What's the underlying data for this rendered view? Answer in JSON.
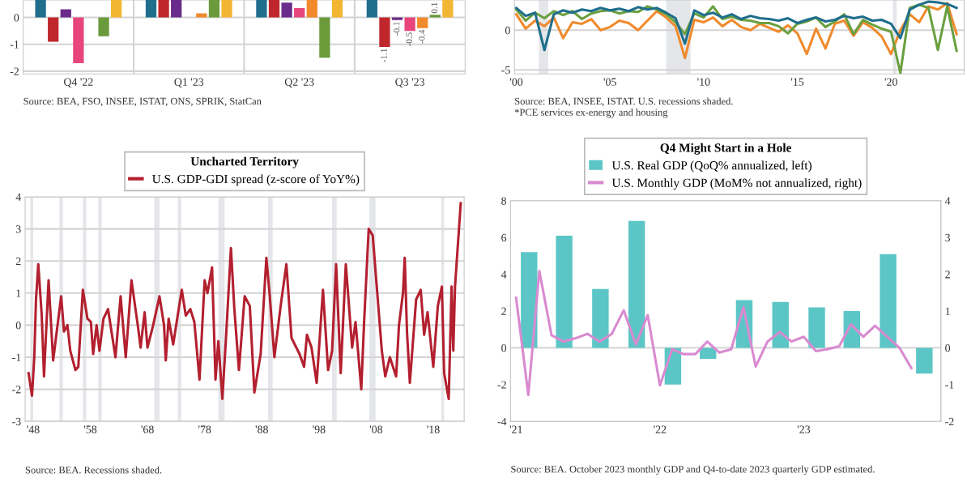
{
  "chart_data": [
    {
      "type": "bar",
      "categories": [
        "Q4 '22",
        "Q1 '23",
        "Q2 '23",
        "Q3 '23"
      ],
      "ylim": [
        -2.1,
        0.65
      ],
      "yticks": [
        0,
        -1,
        -2
      ],
      "grid": true,
      "series": [
        {
          "color": "#1f6e8c",
          "values": [
            0.65,
            0.65,
            0.65,
            0.65
          ]
        },
        {
          "color": "#c0272d",
          "values": [
            -0.9,
            0.65,
            0.65,
            -1.1
          ],
          "value_labels": [
            null,
            null,
            null,
            "-1.1"
          ]
        },
        {
          "color": "#6a2c8a",
          "values": [
            0.3,
            0.65,
            0.55,
            -0.1
          ],
          "value_labels": [
            null,
            null,
            null,
            "-0.1"
          ]
        },
        {
          "color": "#e8457c",
          "values": [
            -1.7,
            null,
            0.35,
            -0.5
          ],
          "value_labels": [
            null,
            null,
            null,
            "-0.5"
          ]
        },
        {
          "color": "#f08a2c",
          "values": [
            null,
            0.15,
            0.65,
            -0.4
          ],
          "value_labels": [
            null,
            null,
            null,
            "-0.4"
          ]
        },
        {
          "color": "#6a9a3a",
          "values": [
            -0.7,
            0.65,
            -1.5,
            0.1
          ],
          "value_labels": [
            null,
            null,
            null,
            "0.1"
          ]
        },
        {
          "color": "#f2b632",
          "values": [
            0.65,
            0.65,
            0.65,
            0.65
          ]
        }
      ],
      "annotations": [
        "Source: BEA, FSO, INSEE, ISTAT, ONS, SPRIK, StatCan"
      ]
    },
    {
      "type": "line",
      "xlim": [
        1999.9,
        2023.9
      ],
      "ylim": [
        -5.5,
        3.8
      ],
      "yticks": [
        0,
        -5
      ],
      "grid": "y",
      "xticks": [
        {
          "value": 2000,
          "label": "'00"
        },
        {
          "value": 2005,
          "label": "'05"
        },
        {
          "value": 2010,
          "label": "'10"
        },
        {
          "value": 2015,
          "label": "'15"
        },
        {
          "value": 2020,
          "label": "'20"
        }
      ],
      "x": [
        2000.0,
        2000.5,
        2001.0,
        2001.5,
        2002.0,
        2002.5,
        2003.0,
        2003.5,
        2004.0,
        2004.5,
        2005.0,
        2005.5,
        2006.0,
        2006.5,
        2007.0,
        2007.5,
        2008.0,
        2008.5,
        2009.0,
        2009.5,
        2010.0,
        2010.5,
        2011.0,
        2011.5,
        2012.0,
        2012.5,
        2013.0,
        2013.5,
        2014.0,
        2014.5,
        2015.0,
        2015.5,
        2016.0,
        2016.5,
        2017.0,
        2017.5,
        2018.0,
        2018.5,
        2019.0,
        2019.5,
        2020.0,
        2020.5,
        2021.0,
        2021.5,
        2022.0,
        2022.5,
        2023.0,
        2023.5
      ],
      "series": [
        {
          "color": "#f08a2c",
          "values": [
            2.0,
            0.2,
            1.2,
            0.5,
            1.6,
            -1.0,
            1.0,
            0.8,
            1.4,
            0.0,
            0.4,
            1.2,
            0.9,
            0.0,
            1.2,
            2.4,
            1.6,
            0.5,
            -3.5,
            1.3,
            1.0,
            1.6,
            0.5,
            1.3,
            0.4,
            0.0,
            0.8,
            0.3,
            -0.2,
            0.6,
            -0.4,
            -3.0,
            0.2,
            -2.3,
            0.8,
            1.2,
            -0.7,
            1.0,
            0.3,
            -0.8,
            -3.0,
            0.0,
            2.0,
            1.0,
            3.0,
            2.6,
            3.4,
            -0.5
          ]
        },
        {
          "color": "#6aa040",
          "values": [
            2.6,
            1.2,
            2.2,
            1.5,
            2.4,
            1.9,
            2.4,
            1.4,
            2.1,
            2.4,
            2.5,
            2.1,
            2.4,
            2.3,
            3.0,
            2.6,
            2.0,
            1.0,
            -0.5,
            2.1,
            1.6,
            3.0,
            1.4,
            1.7,
            1.3,
            1.2,
            0.9,
            0.9,
            0.5,
            -0.4,
            0.8,
            1.1,
            1.6,
            0.4,
            1.1,
            2.0,
            -0.5,
            1.3,
            0.7,
            0.2,
            -0.2,
            -5.4,
            2.8,
            3.2,
            2.8,
            -2.5,
            3.0,
            -2.6
          ]
        },
        {
          "color": "#1f6e8c",
          "values": [
            2.8,
            1.8,
            2.2,
            -2.5,
            2.0,
            2.5,
            2.2,
            2.6,
            2.4,
            2.8,
            2.5,
            2.7,
            2.4,
            2.9,
            2.6,
            2.8,
            2.2,
            1.5,
            -1.7,
            2.5,
            1.9,
            2.2,
            1.6,
            2.0,
            1.4,
            1.8,
            1.5,
            1.4,
            1.2,
            1.5,
            0.9,
            1.3,
            1.6,
            1.1,
            1.3,
            1.8,
            1.5,
            1.7,
            1.2,
            1.3,
            0.8,
            -1.0,
            2.6,
            3.2,
            3.6,
            3.5,
            3.3,
            2.8
          ]
        }
      ],
      "bands": [
        {
          "axis": "x",
          "from": 2001.2,
          "to": 2001.7,
          "color": "#e4e6ea"
        },
        {
          "axis": "x",
          "from": 2008.0,
          "to": 2009.3,
          "color": "#e4e6ea"
        },
        {
          "axis": "x",
          "from": 2020.1,
          "to": 2020.3,
          "color": "#e4e6ea"
        }
      ],
      "annotations": [
        "Source: BEA, INSEE, ISTAT. U.S. recessions shaded.",
        "*PCE services ex-energy and housing"
      ]
    },
    {
      "type": "line",
      "legend_title": "Uncharted Territory",
      "legend": "top",
      "xlim": [
        1946.6,
        2023.4
      ],
      "ylim": [
        -3,
        4
      ],
      "yticks": [
        -3,
        -2,
        -1,
        0,
        1,
        2,
        3,
        4
      ],
      "grid": "y",
      "xticks": [
        {
          "value": 1948,
          "label": "'48"
        },
        {
          "value": 1958,
          "label": "'58"
        },
        {
          "value": 1968,
          "label": "'68"
        },
        {
          "value": 1978,
          "label": "'78"
        },
        {
          "value": 1988,
          "label": "'88"
        },
        {
          "value": 1998,
          "label": "'98"
        },
        {
          "value": 2008,
          "label": "'08"
        },
        {
          "value": 2018,
          "label": "'18"
        }
      ],
      "x": [
        1947.2,
        1947.8,
        1948.2,
        1948.5,
        1948.9,
        1949.5,
        1949.9,
        1950.7,
        1951.5,
        1952.9,
        1953.4,
        1954.0,
        1954.5,
        1955.4,
        1955.9,
        1956.7,
        1957.5,
        1958.1,
        1958.5,
        1959.1,
        1959.6,
        1960.3,
        1961.1,
        1962.4,
        1963.3,
        1964.2,
        1965.2,
        1966.3,
        1966.8,
        1967.5,
        1968.0,
        1969.0,
        1970.1,
        1970.9,
        1971.2,
        1971.7,
        1972.5,
        1973.2,
        1974.0,
        1974.7,
        1975.5,
        1976.2,
        1977.1,
        1978.0,
        1978.5,
        1979.3,
        1979.9,
        1980.4,
        1981.1,
        1981.8,
        1982.6,
        1983.2,
        1984.0,
        1985.0,
        1985.9,
        1986.7,
        1987.8,
        1988.8,
        1989.4,
        1990.2,
        1991.3,
        1992.3,
        1993.2,
        1994.6,
        1995.4,
        1995.9,
        1996.7,
        1997.6,
        1998.7,
        1999.6,
        2000.3,
        2001.0,
        2001.8,
        2002.7,
        2003.8,
        2004.4,
        2005.4,
        2005.9,
        2006.7,
        2007.4,
        2008.2,
        2009.0,
        2009.6,
        2010.4,
        2011.5,
        2012.0,
        2012.7,
        2013.0,
        2013.4,
        2013.9,
        2015.0,
        2015.8,
        2016.4,
        2017.0,
        2018.0,
        2018.8,
        2019.5,
        2019.9,
        2020.7,
        2021.2,
        2021.5,
        2021.8,
        2022.8
      ],
      "series": [
        {
          "name": "U.S. GDP-GDI spread (z-score of YoY%)",
          "color": "#b3202f",
          "values": [
            -1.5,
            -2.2,
            -1.0,
            0.8,
            1.9,
            0.3,
            -1.6,
            1.4,
            -1.1,
            0.9,
            -0.2,
            0.0,
            -0.8,
            -1.4,
            -1.3,
            1.1,
            0.2,
            0.1,
            -0.9,
            0.0,
            -0.8,
            0.2,
            0.5,
            -1.0,
            0.9,
            -1.0,
            1.4,
            0.0,
            -0.7,
            0.4,
            -0.7,
            0.0,
            0.9,
            0.0,
            -1.1,
            0.2,
            -0.6,
            0.2,
            1.1,
            0.3,
            0.5,
            0.1,
            -1.7,
            1.4,
            1.0,
            1.8,
            -1.7,
            -0.5,
            -2.3,
            -0.2,
            2.4,
            0.5,
            -1.4,
            0.9,
            0.6,
            -2.1,
            -0.9,
            2.1,
            0.9,
            -1.0,
            0.6,
            1.9,
            -0.4,
            -0.9,
            -1.3,
            -0.3,
            -0.7,
            -1.8,
            1.1,
            -1.4,
            -0.8,
            1.9,
            -1.5,
            1.9,
            -0.7,
            0.1,
            -2.0,
            0.1,
            3.0,
            2.8,
            1.0,
            -0.8,
            -1.6,
            -1.0,
            -1.6,
            0.0,
            1.0,
            2.1,
            -0.2,
            -1.8,
            0.8,
            1.1,
            -0.3,
            0.4,
            -1.3,
            0.6,
            1.2,
            -1.5,
            -2.3,
            1.2,
            -0.8,
            1.2,
            3.8
          ]
        }
      ],
      "bands": [
        {
          "axis": "x",
          "from": 1947.5,
          "to": 1948.0,
          "color": "#e4e6ea"
        },
        {
          "axis": "x",
          "from": 1952.6,
          "to": 1953.2,
          "color": "#e4e6ea"
        },
        {
          "axis": "x",
          "from": 1956.7,
          "to": 1957.3,
          "color": "#e4e6ea"
        },
        {
          "axis": "x",
          "from": 1959.4,
          "to": 1960.0,
          "color": "#e4e6ea"
        },
        {
          "axis": "x",
          "from": 1969.2,
          "to": 1970.1,
          "color": "#e4e6ea"
        },
        {
          "axis": "x",
          "from": 1973.3,
          "to": 1973.9,
          "color": "#e4e6ea"
        },
        {
          "axis": "x",
          "from": 1980.4,
          "to": 1981.5,
          "color": "#e4e6ea"
        },
        {
          "axis": "x",
          "from": 1989.1,
          "to": 1989.9,
          "color": "#e4e6ea"
        },
        {
          "axis": "x",
          "from": 2000.3,
          "to": 2001.1,
          "color": "#e4e6ea"
        },
        {
          "axis": "x",
          "from": 2006.8,
          "to": 2007.9,
          "color": "#e4e6ea"
        },
        {
          "axis": "x",
          "from": 2019.4,
          "to": 2019.9,
          "color": "#e4e6ea"
        }
      ],
      "annotations": [
        "Source: BEA. Recessions shaded."
      ]
    },
    {
      "type": "bar",
      "legend_title": "Q4 Might Start in a Hole",
      "legend": "top",
      "xlim": [
        "2020-12-18",
        "2023-12-15"
      ],
      "ylim": [
        -4,
        8
      ],
      "yticks": [
        -4,
        -2,
        0,
        2,
        4,
        6,
        8
      ],
      "y2lim": [
        -2,
        4
      ],
      "y2ticks": [
        -2,
        -1,
        0,
        1,
        2,
        3,
        4
      ],
      "xticks": [
        {
          "value": "2021-01-01",
          "label": "'21"
        },
        {
          "value": "2022-01-01",
          "label": "'22"
        },
        {
          "value": "2023-01-01",
          "label": "'23"
        }
      ],
      "ref_lines": [
        {
          "axis": "y",
          "value": 0,
          "color": "#d9d9d9"
        }
      ],
      "series": [
        {
          "name": "U.S. Real GDP (QoQ% annualized, left)",
          "type": "bar",
          "color": "#5cc6c6",
          "x": [
            "2021-02-03",
            "2021-05-03",
            "2021-08-03",
            "2021-11-03",
            "2022-02-03",
            "2022-05-03",
            "2022-08-03",
            "2022-11-03",
            "2023-02-03",
            "2023-05-03",
            "2023-08-03",
            "2023-11-03"
          ],
          "values": [
            5.2,
            6.1,
            3.2,
            6.9,
            -2.0,
            -0.6,
            2.6,
            2.5,
            2.2,
            2.0,
            5.1,
            -1.4
          ]
        },
        {
          "name": "U.S. Monthly GDP (MoM% not annualized, right)",
          "type": "line",
          "axis": "y2",
          "color": "#d98ad0",
          "x": [
            "2021-01",
            "2021-02",
            "2021-03",
            "2021-04",
            "2021-05",
            "2021-06",
            "2021-07",
            "2021-08",
            "2021-09",
            "2021-10",
            "2021-11",
            "2021-12",
            "2022-01",
            "2022-02",
            "2022-03",
            "2022-04",
            "2022-05",
            "2022-06",
            "2022-07",
            "2022-08",
            "2022-09",
            "2022-10",
            "2022-11",
            "2022-12",
            "2023-01",
            "2023-02",
            "2023-03",
            "2023-04",
            "2023-05",
            "2023-06",
            "2023-07",
            "2023-08",
            "2023-09",
            "2023-10"
          ],
          "values": [
            1.36,
            -1.28,
            2.09,
            0.34,
            0.17,
            0.26,
            0.38,
            0.17,
            0.38,
            1.02,
            0.09,
            0.89,
            -1.02,
            -0.04,
            -0.17,
            -0.17,
            0.17,
            -0.13,
            -0.04,
            1.11,
            -0.51,
            0.17,
            0.43,
            0.17,
            0.3,
            -0.09,
            -0.04,
            0.04,
            0.64,
            0.3,
            0.6,
            0.3,
            0.0,
            -0.55
          ]
        }
      ],
      "annotations": [
        "Source: BEA. October 2023 monthly GDP and Q4-to-date 2023 quarterly GDP estimated."
      ]
    }
  ]
}
